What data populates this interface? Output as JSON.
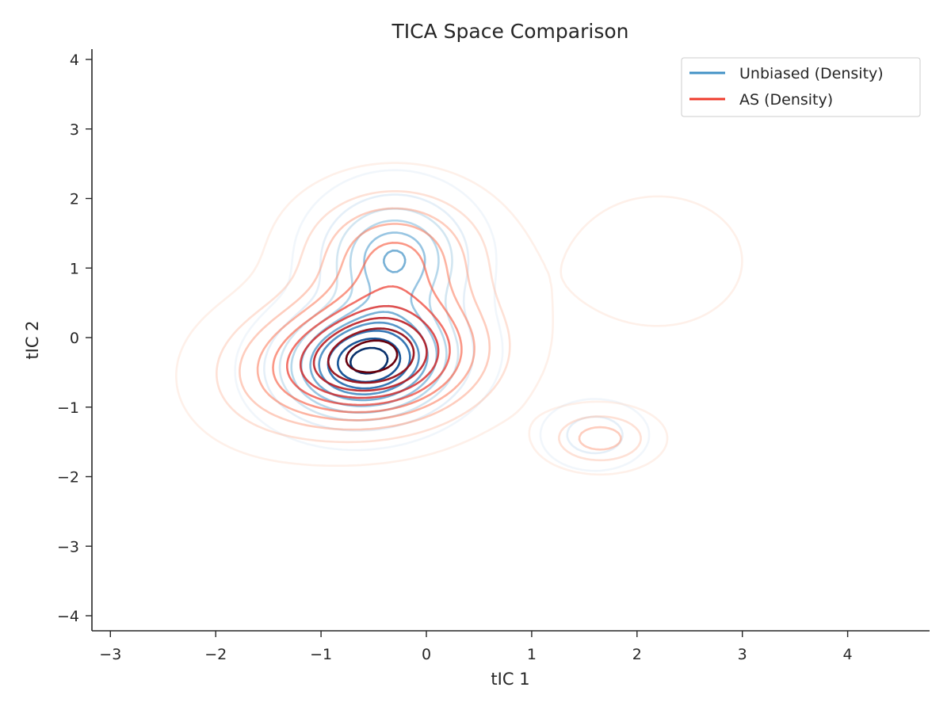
{
  "chart_data": {
    "type": "contour",
    "title": "TICA Space Comparison",
    "xlabel": "tIC 1",
    "ylabel": "tIC 2",
    "xlim": [
      -3.2,
      4.8
    ],
    "ylim": [
      -4.2,
      4.2
    ],
    "xticks": [
      -3,
      -2,
      -1,
      0,
      1,
      2,
      3,
      4
    ],
    "yticks": [
      -4,
      -3,
      -2,
      -1,
      0,
      1,
      2,
      3,
      4
    ],
    "xtick_labels": [
      "−3",
      "−2",
      "−1",
      "0",
      "1",
      "2",
      "3",
      "4"
    ],
    "ytick_labels": [
      "−4",
      "−3",
      "−2",
      "−1",
      "0",
      "1",
      "2",
      "3",
      "4"
    ],
    "grid": false,
    "legend_position": "top-right",
    "series": [
      {
        "name": "Unbiased (Density)",
        "color": "#4292c6",
        "colormap": "Blues",
        "levels": 10,
        "components": [
          {
            "mx": -0.55,
            "my": -0.35,
            "sx": 0.5,
            "sy": 0.5,
            "rho": 0.1,
            "w": 1.0
          },
          {
            "mx": -0.3,
            "my": 1.15,
            "sx": 0.42,
            "sy": 0.55,
            "rho": 0.0,
            "w": 0.55
          },
          {
            "mx": 1.6,
            "my": -1.4,
            "sx": 0.28,
            "sy": 0.28,
            "rho": 0.0,
            "w": 0.22
          }
        ]
      },
      {
        "name": "AS (Density)",
        "color": "#ef3b2c",
        "colormap": "Reds",
        "levels": 10,
        "components": [
          {
            "mx": -0.5,
            "my": -0.3,
            "sx": 0.65,
            "sy": 0.6,
            "rho": 0.1,
            "w": 1.0
          },
          {
            "mx": -0.3,
            "my": 1.2,
            "sx": 0.55,
            "sy": 0.6,
            "rho": 0.0,
            "w": 0.45
          },
          {
            "mx": 1.65,
            "my": -1.45,
            "sx": 0.32,
            "sy": 0.26,
            "rho": 0.0,
            "w": 0.3
          },
          {
            "mx": 2.2,
            "my": 1.1,
            "sx": 0.6,
            "sy": 0.7,
            "rho": 0.0,
            "w": 0.1
          },
          {
            "mx": -1.5,
            "my": -0.6,
            "sx": 0.5,
            "sy": 0.6,
            "rho": 0.0,
            "w": 0.12
          }
        ]
      }
    ]
  }
}
